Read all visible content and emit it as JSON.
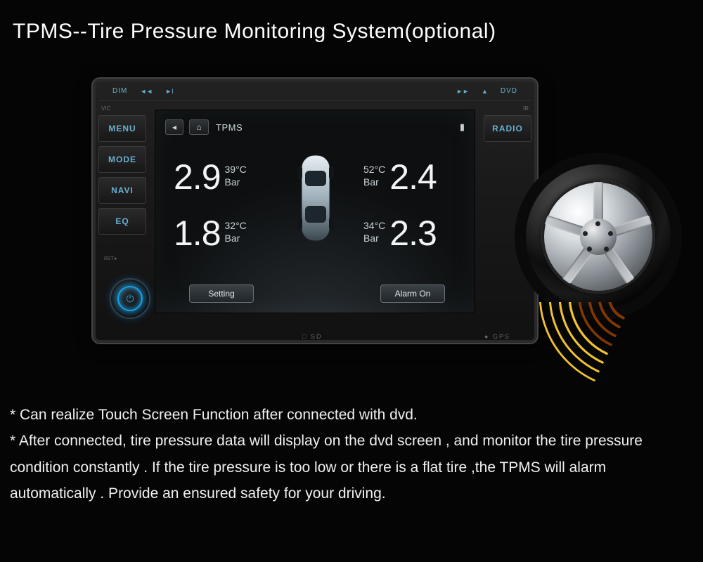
{
  "title": "TPMS--Tire Pressure Monitoring System(optional)",
  "headunit": {
    "top": {
      "dim": "DIM",
      "prev": "◄◄",
      "play": "►I",
      "next": "►►",
      "eject": "▲",
      "dvd": "DVD"
    },
    "vic_label": "VIC",
    "ir_label": "IR",
    "left_buttons": [
      "MENU",
      "MODE",
      "NAVI",
      "EQ"
    ],
    "right_buttons": [
      "RADIO"
    ],
    "rst_label": "RST●",
    "sd_label": "□ SD",
    "gps_label": "● GPS"
  },
  "screen": {
    "back_glyph": "◂",
    "home_glyph": "⌂",
    "title": "TPMS",
    "battery_glyph": "▮",
    "unit_pressure": "Bar",
    "tires": {
      "fl": {
        "pressure": "2.9",
        "temp": "39°C"
      },
      "fr": {
        "pressure": "2.4",
        "temp": "52°C"
      },
      "rl": {
        "pressure": "1.8",
        "temp": "32°C"
      },
      "rr": {
        "pressure": "2.3",
        "temp": "34°C"
      }
    },
    "setting_btn": "Setting",
    "alarm_btn": "Alarm On"
  },
  "colors": {
    "accent": "#6ab0d0",
    "power_glow": "#18a0e8",
    "wave_dark": "#8a3a00",
    "wave_light": "#ffcc33"
  },
  "description": {
    "line1": "* Can realize Touch Screen Function after connected with dvd.",
    "line2": "* After connected, tire pressure  data will display on the dvd screen , and monitor the tire pressure condition constantly . If the tire pressure is too low or there is a flat tire ,the TPMS will alarm automatically . Provide an ensured safety for your driving."
  }
}
